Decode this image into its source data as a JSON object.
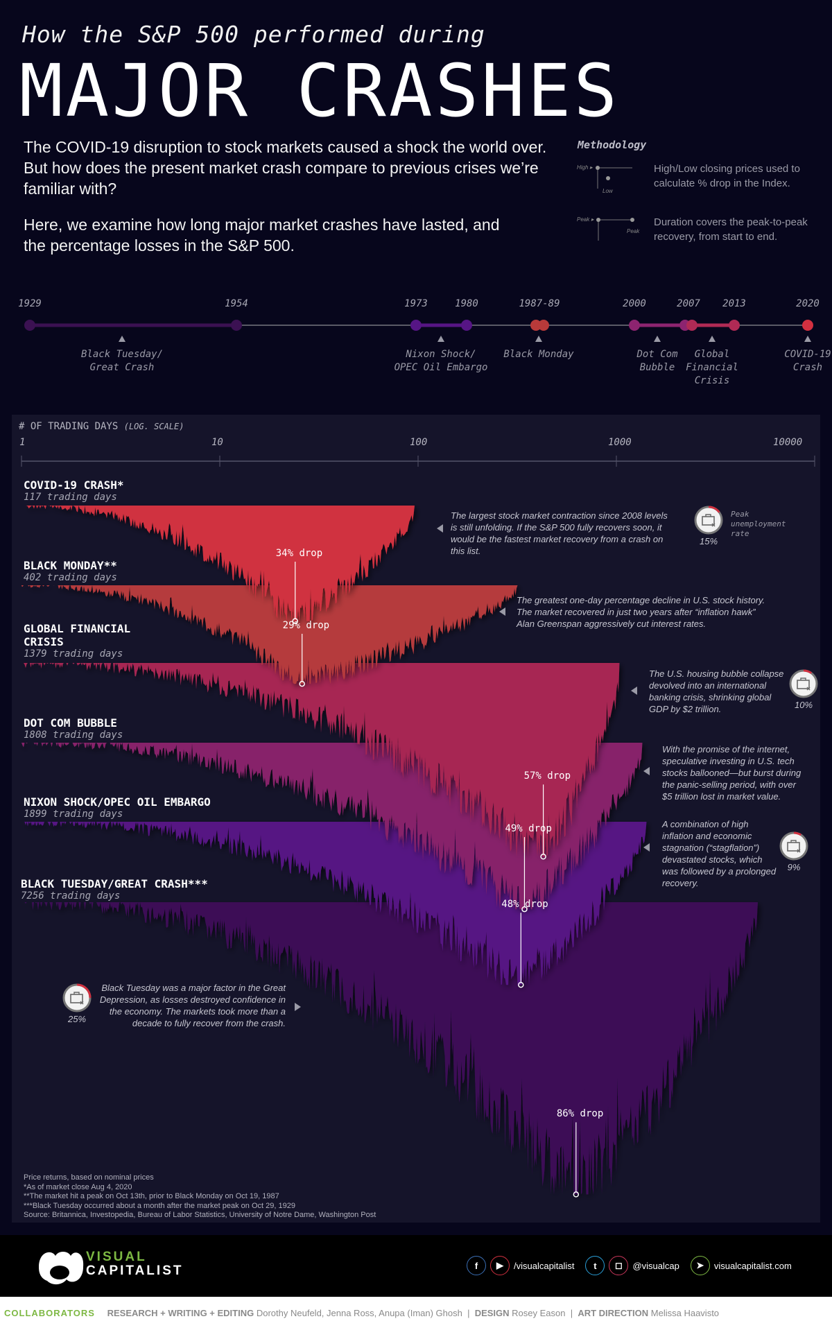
{
  "header": {
    "subtitle": "How the S&P 500 performed during",
    "title": "MAJOR CRASHES",
    "intro_1": "The COVID-19 disruption to stock markets caused a shock the world over. But how does the present market crash compare to previous crises we’re familiar with?",
    "intro_2": "Here, we examine how long major market crashes have lasted, and the percentage losses in the S&P 500."
  },
  "methodology": {
    "title": "Methodology",
    "items": [
      {
        "icon": "high-low-diagram-icon",
        "labels": [
          "High",
          "Low"
        ],
        "text": "High/Low closing prices used to calculate % drop in the Index."
      },
      {
        "icon": "peak-to-peak-diagram-icon",
        "labels": [
          "Peak",
          "Peak"
        ],
        "text": "Duration covers the peak-to-peak recovery, from start to end."
      }
    ]
  },
  "timeline": {
    "years": [
      "1929",
      "1954",
      "1973",
      "1980",
      "1987-89",
      "2000",
      "2007",
      "2013",
      "2020"
    ],
    "events": [
      {
        "label": "Black Tuesday/\nGreat Crash",
        "start": 1929,
        "end": 1954,
        "color": "#3b1152"
      },
      {
        "label": "Nixon Shock/\nOPEC Oil Embargo",
        "start": 1973,
        "end": 1980,
        "color": "#561585"
      },
      {
        "label": "Black Monday",
        "start": 1987,
        "end": 1989,
        "color": "#b83a3a"
      },
      {
        "label": "Dot Com\nBubble",
        "start": 2000,
        "end": 2007,
        "color": "#8d2470"
      },
      {
        "label": "Global\nFinancial\nCrisis",
        "start": 2007,
        "end": 2013,
        "color": "#b02a55"
      },
      {
        "label": "COVID-19\nCrash",
        "start": 2020,
        "end": 2020,
        "color": "#d33040"
      }
    ]
  },
  "chart_data": {
    "type": "area",
    "title": "# OF TRADING DAYS",
    "xlabel_note": "(LOG. SCALE)",
    "x_scale": "log",
    "xlim": [
      1,
      10000
    ],
    "x_ticks": [
      "1",
      "10",
      "100",
      "1000",
      "10000"
    ],
    "series": [
      {
        "name": "COVID-19 CRASH*",
        "trading_days": 117,
        "days_label": "117 trading days",
        "drop_pct": 34,
        "drop_label": "34% drop",
        "trough_day": 24,
        "color": "#d0303f",
        "note": "The largest stock market contraction since 2008 levels is still unfolding. If the S&P 500 fully recovers soon, it would be the fastest market recovery from a crash on this list.",
        "unemployment": 15,
        "unemployment_label": "15%",
        "unemployment_caption": "Peak unemployment rate"
      },
      {
        "name": "BLACK MONDAY**",
        "trading_days": 402,
        "days_label": "402 trading days",
        "drop_pct": 29,
        "drop_label": "29% drop",
        "trough_day": 26,
        "color": "#b53a3c",
        "note": "The greatest one-day percentage decline in U.S. stock history. The market recovered in just two years after “inflation hawk” Alan Greenspan aggressively cut interest rates."
      },
      {
        "name": "GLOBAL FINANCIAL CRISIS",
        "trading_days": 1379,
        "days_label": "1379 trading days",
        "drop_pct": 57,
        "drop_label": "57% drop",
        "trough_day": 428,
        "color": "#a72752",
        "note": "The U.S. housing bubble collapse devolved into an international banking crisis, shrinking global GDP by $2 trillion.",
        "unemployment": 10,
        "unemployment_label": "10%"
      },
      {
        "name": "DOT COM BUBBLE",
        "trading_days": 1808,
        "days_label": "1808 trading days",
        "drop_pct": 49,
        "drop_label": "49% drop",
        "trough_day": 344,
        "color": "#87236a",
        "note": "With the promise of the internet, speculative investing in U.S. tech stocks ballooned—but burst during the panic-selling period, with over $5 trillion lost in market value."
      },
      {
        "name": "NIXON SHOCK/OPEC OIL EMBARGO",
        "trading_days": 1899,
        "days_label": "1899 trading days",
        "drop_pct": 48,
        "drop_label": "48% drop",
        "trough_day": 330,
        "color": "#571583",
        "note": "A combination of high inflation and economic stagnation (“stagflation”) devastated stocks, which was followed by a prolonged recovery.",
        "unemployment": 9,
        "unemployment_label": "9%"
      },
      {
        "name": "BLACK TUESDAY/GREAT CRASH***",
        "trading_days": 7256,
        "days_label": "7256 trading days",
        "drop_pct": 86,
        "drop_label": "86% drop",
        "trough_day": 626,
        "color": "#3c1057",
        "note": "Black Tuesday was a major factor in the Great Depression, as losses destroyed confidence in the economy. The markets took more than a decade to fully recover from the crash.",
        "unemployment": 25,
        "unemployment_label": "25%"
      }
    ]
  },
  "footnotes": [
    "Price returns, based on nominal prices",
    "*As of market close Aug 4, 2020",
    "**The market hit a peak on Oct 13th, prior to Black Monday on Oct 19, 1987",
    "***Black Tuesday occurred about a month after the market peak on Oct 29, 1929",
    "Source: Britannica, Investopedia, Bureau of Labor Statistics, University of Notre Dame, Washington Post"
  ],
  "footer": {
    "logo_line1": "VISUAL",
    "logo_line2": "CAPITALIST",
    "social_1": "/visualcapitalist",
    "social_2": "@visualcap",
    "website": "visualcapitalist.com",
    "colors": {
      "facebook": "#3b6fb6",
      "youtube": "#d0303f",
      "twitter": "#2a9fd8",
      "instagram": "#c8365a",
      "web": "#7db843"
    }
  },
  "collaborators": {
    "title": "COLLABORATORS",
    "research_label": "RESEARCH + WRITING + EDITING",
    "research_names": "Dorothy Neufeld, Jenna Ross, Anupa (Iman) Ghosh",
    "design_label": "DESIGN",
    "design_names": "Rosey Eason",
    "art_label": "ART DIRECTION",
    "art_names": "Melissa Haavisto"
  }
}
